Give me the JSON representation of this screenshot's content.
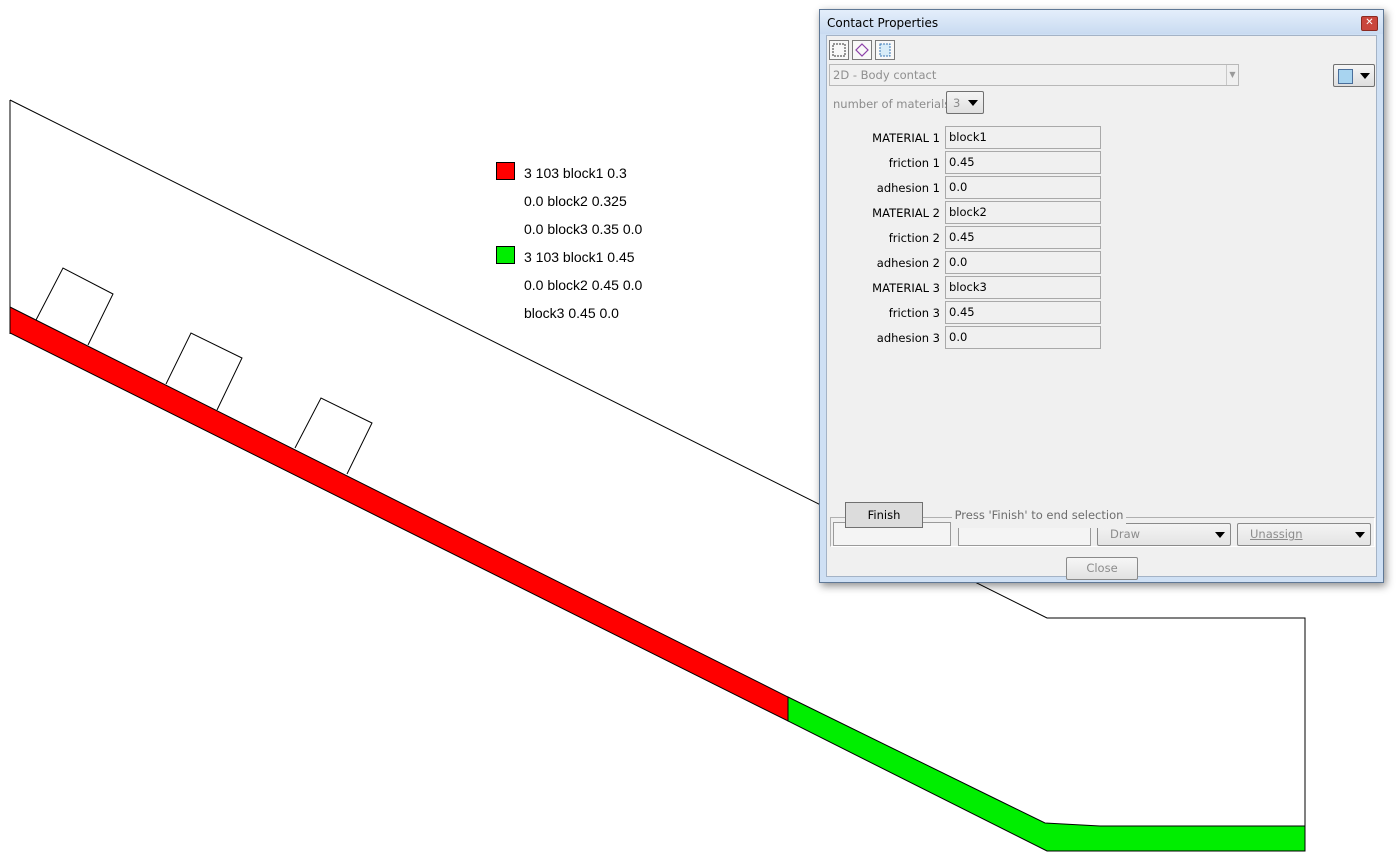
{
  "legend": [
    {
      "color": "#ff0000",
      "lines": [
        "3 103 block1 0.3",
        "0.0 block2 0.325",
        "0.0 block3 0.35 0.0"
      ]
    },
    {
      "color": "#00ee00",
      "lines": [
        "3 103 block1 0.45",
        "0.0 block2 0.45 0.0",
        "block3 0.45 0.0"
      ]
    }
  ],
  "dialog": {
    "title": "Contact Properties",
    "toolbar": {
      "icons": [
        "rectangle-select-icon",
        "polygon-select-icon",
        "grid-select-icon"
      ]
    },
    "contact_type": "2D - Body contact",
    "color_swatch": "#a8d4f0",
    "num_materials_label": "number of materials:",
    "num_materials_value": "3",
    "properties": [
      {
        "label": "MATERIAL 1",
        "value": "block1"
      },
      {
        "label": "friction 1",
        "value": "0.45"
      },
      {
        "label": "adhesion 1",
        "value": "0.0"
      },
      {
        "label": "MATERIAL 2",
        "value": "block2"
      },
      {
        "label": "friction 2",
        "value": "0.45"
      },
      {
        "label": "adhesion 2",
        "value": "0.0"
      },
      {
        "label": "MATERIAL 3",
        "value": "block3"
      },
      {
        "label": "friction 3",
        "value": "0.45"
      },
      {
        "label": "adhesion 3",
        "value": "0.0"
      }
    ],
    "finish_label": "Finish",
    "finish_hint": "Press 'Finish' to end selection",
    "draw_label": "Draw",
    "unassign_label": "Unassign",
    "close_label": "Close"
  }
}
